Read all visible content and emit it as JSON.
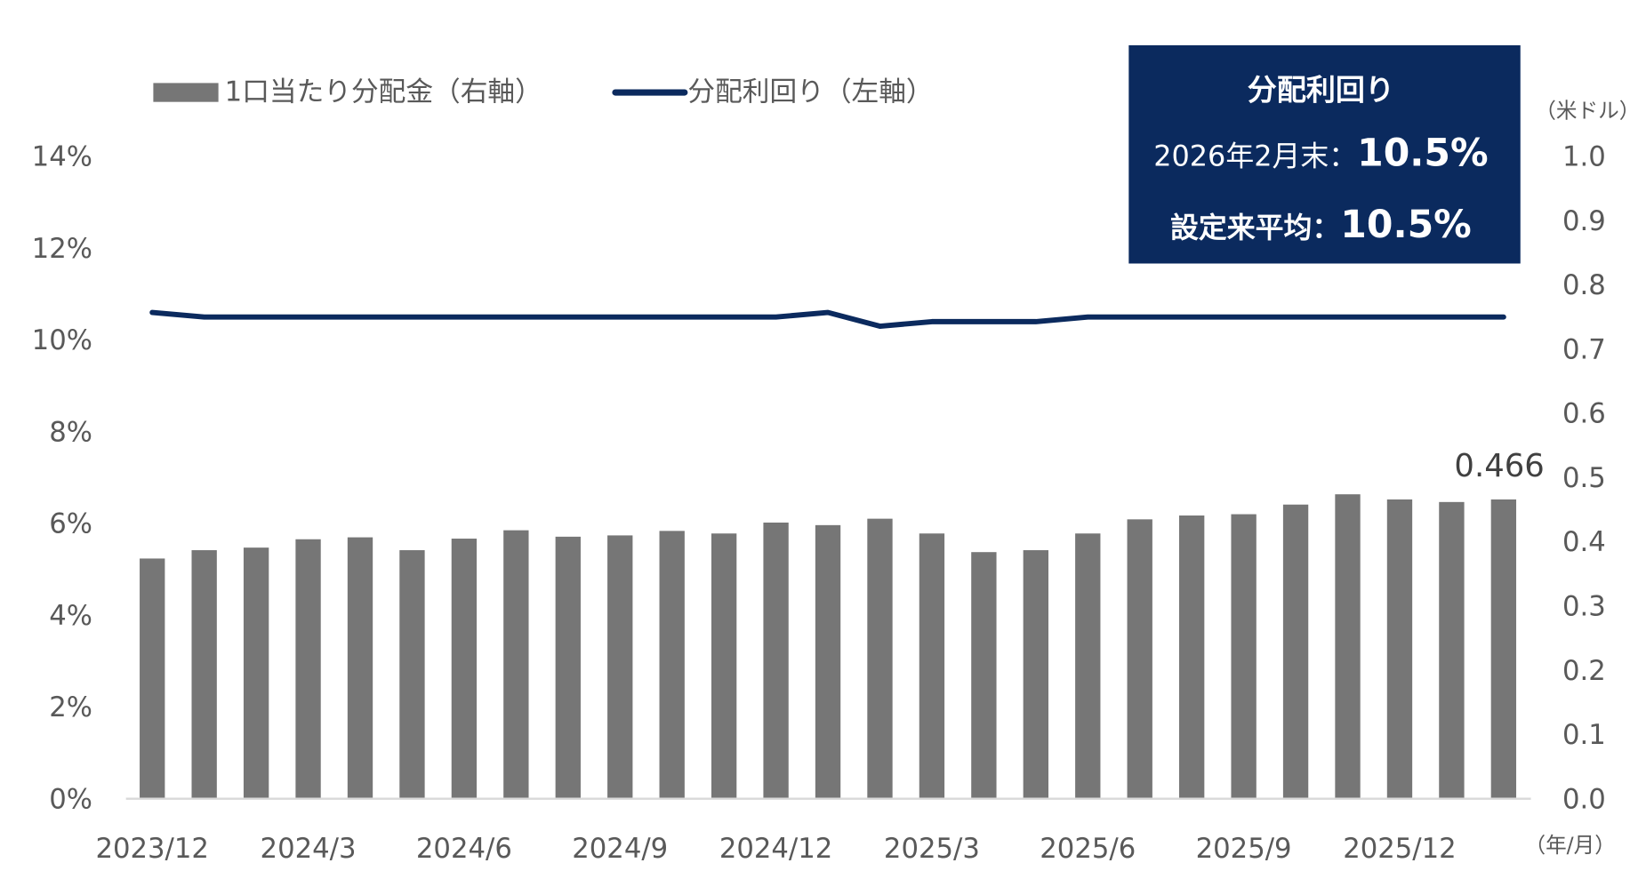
{
  "chart_data": {
    "type": "bar+line",
    "categories": [
      "2023/12",
      "2024/1",
      "2024/2",
      "2024/3",
      "2024/4",
      "2024/5",
      "2024/6",
      "2024/7",
      "2024/8",
      "2024/9",
      "2024/10",
      "2024/11",
      "2024/12",
      "2025/1",
      "2025/2",
      "2025/3",
      "2025/4",
      "2025/5",
      "2025/6",
      "2025/7",
      "2025/8",
      "2025/9",
      "2025/10",
      "2025/11",
      "2025/12",
      "2026/1",
      "2026/2"
    ],
    "x_tick_labels": [
      "2023/12",
      "2024/3",
      "2024/6",
      "2024/9",
      "2024/12",
      "2025/3",
      "2025/6",
      "2025/9",
      "2025/12"
    ],
    "x_unit_label": "（年/月）",
    "series": [
      {
        "name": "1口当たり分配金（右軸）",
        "type": "bar",
        "axis": "right",
        "color": "#767676",
        "values": [
          0.374,
          0.387,
          0.391,
          0.404,
          0.407,
          0.387,
          0.405,
          0.418,
          0.408,
          0.41,
          0.417,
          0.413,
          0.43,
          0.426,
          0.436,
          0.413,
          0.384,
          0.387,
          0.413,
          0.435,
          0.441,
          0.443,
          0.458,
          0.474,
          0.466,
          0.462,
          0.466
        ]
      },
      {
        "name": "分配利回り（左軸）",
        "type": "line",
        "axis": "left",
        "color": "#0b2a5e",
        "values": [
          10.6,
          10.5,
          10.5,
          10.5,
          10.5,
          10.5,
          10.5,
          10.5,
          10.5,
          10.5,
          10.5,
          10.5,
          10.5,
          10.6,
          10.3,
          10.4,
          10.4,
          10.4,
          10.5,
          10.5,
          10.5,
          10.5,
          10.5,
          10.5,
          10.5,
          10.5,
          10.5
        ]
      }
    ],
    "left_axis": {
      "ylim": [
        0,
        14
      ],
      "tick_labels": [
        "0%",
        "2%",
        "4%",
        "6%",
        "8%",
        "10%",
        "12%",
        "14%"
      ]
    },
    "right_axis": {
      "ylim": [
        0,
        1.0
      ],
      "unit": "（米ドル）",
      "tick_labels": [
        "0.0",
        "0.1",
        "0.2",
        "0.3",
        "0.4",
        "0.5",
        "0.6",
        "0.7",
        "0.8",
        "0.9",
        "1.0"
      ]
    },
    "data_label": "0.466",
    "legend_position": "top-left",
    "grid": false
  },
  "infobox": {
    "title": "分配利回り",
    "row1_label": "2026年2月末：",
    "row1_value": "10.5%",
    "row2_label": "設定来平均：",
    "row2_value": "10.5%",
    "bg_color": "#0b2a5e"
  }
}
